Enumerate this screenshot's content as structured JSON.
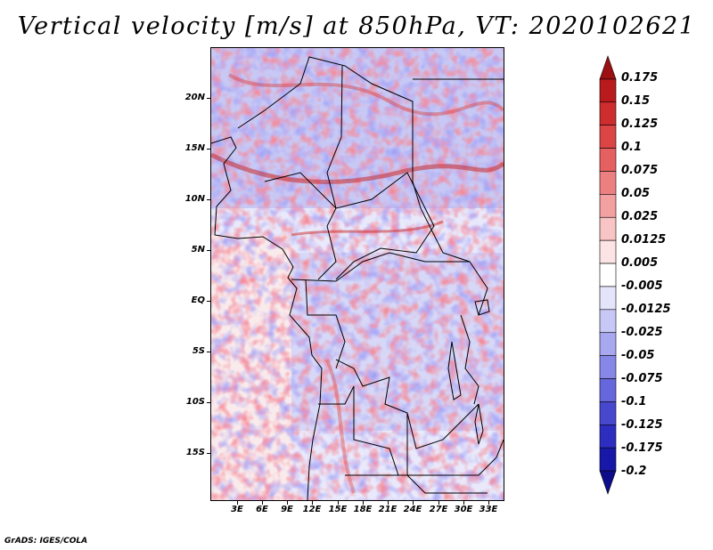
{
  "title": "Vertical velocity [m/s] at 850hPa, VT: 2020102621",
  "map": {
    "description_region": "Central Africa",
    "lat_labels": [
      "20N",
      "15N",
      "10N",
      "5N",
      "EQ",
      "5S",
      "10S",
      "15S"
    ],
    "lon_labels": [
      "3E",
      "6E",
      "9E",
      "12E",
      "15E",
      "18E",
      "21E",
      "24E",
      "27E",
      "30E",
      "33E"
    ]
  },
  "colorbar": {
    "labels": [
      "0.175",
      "0.15",
      "0.125",
      "0.1",
      "0.075",
      "0.05",
      "0.025",
      "0.0125",
      "0.005",
      "-0.005",
      "-0.0125",
      "-0.025",
      "-0.05",
      "-0.075",
      "-0.1",
      "-0.125",
      "-0.175",
      "-0.2"
    ],
    "colors": [
      "#9c0f12",
      "#b81a1e",
      "#cd2d2d",
      "#dc4545",
      "#e56161",
      "#ec8080",
      "#f2a0a0",
      "#f8c4c4",
      "#fde4e4",
      "#ffffff",
      "#e4e4fb",
      "#c8c8f6",
      "#a8a8f0",
      "#8787e8",
      "#6767dd",
      "#4848cf",
      "#2d2dbf",
      "#1818a8",
      "#0d0d8c"
    ]
  },
  "credit": "GrADS: IGES/COLA"
}
